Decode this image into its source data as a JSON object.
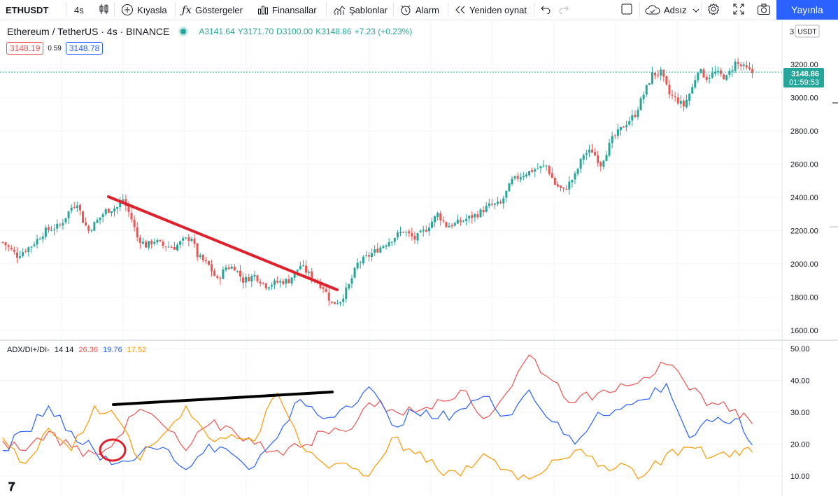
{
  "toolbar": {
    "symbol": "ETHUSDT",
    "interval": "4s",
    "compare": "Kıyasla",
    "indicators": "Göstergeler",
    "financials": "Finansallar",
    "templates": "Şablonlar",
    "alert": "Alarm",
    "replay": "Yeniden oynat",
    "layout_name": "Adsız",
    "publish": "Yayınla"
  },
  "legend": {
    "title": "Ethereum / TetherUS · 4s · BINANCE",
    "open": "A3141.64",
    "high": "Y3171.70",
    "low": "D3100.00",
    "close": "K3148.86",
    "change": "+7.23 (+0.23%)",
    "sell_price": "3148.19",
    "spread": "0.59",
    "buy_price": "3148.78"
  },
  "price_axis": {
    "currency": "USDT",
    "labels": [
      "3200.00",
      "3000.00",
      "2800.00",
      "2600.00",
      "2400.00",
      "2200.00",
      "2000.00",
      "1800.00",
      "1600.00"
    ],
    "last_price": "3148.86",
    "countdown": "01:59:53",
    "top_fragment": "3"
  },
  "indicator": {
    "name": "ADX/DI+/DI-",
    "params": "14 14",
    "adx_value": "26.36",
    "di_plus_value": "19.76",
    "di_minus_value": "17.52",
    "axis_labels": [
      "50.00",
      "40.00",
      "30.00",
      "20.00",
      "10.00"
    ]
  },
  "colors": {
    "up": "#26a69a",
    "down": "#ef5350",
    "adx": "#ef5350",
    "di_plus": "#2962ff",
    "di_minus": "#ff9800",
    "trendline_price": "#e0202b",
    "trendline_indicator": "#000000",
    "accent": "#2962ff"
  },
  "chart_data": [
    {
      "type": "line",
      "chart": "price",
      "y_min": 1600,
      "y_max": 3250,
      "close_path": [
        [
          0,
          2130
        ],
        [
          5,
          2050
        ],
        [
          10,
          2110
        ],
        [
          15,
          2200
        ],
        [
          20,
          2230
        ],
        [
          24,
          2340
        ],
        [
          26,
          2370
        ],
        [
          28,
          2260
        ],
        [
          30,
          2200
        ],
        [
          33,
          2260
        ],
        [
          36,
          2320
        ],
        [
          40,
          2340
        ],
        [
          42,
          2390
        ],
        [
          45,
          2270
        ],
        [
          47,
          2160
        ],
        [
          50,
          2110
        ],
        [
          53,
          2140
        ],
        [
          56,
          2110
        ],
        [
          60,
          2100
        ],
        [
          63,
          2140
        ],
        [
          66,
          2160
        ],
        [
          68,
          2050
        ],
        [
          72,
          1990
        ],
        [
          75,
          1900
        ],
        [
          78,
          1980
        ],
        [
          81,
          1980
        ],
        [
          84,
          1900
        ],
        [
          88,
          1930
        ],
        [
          92,
          1870
        ],
        [
          96,
          1890
        ],
        [
          100,
          1900
        ],
        [
          104,
          1990
        ],
        [
          108,
          1920
        ],
        [
          112,
          1860
        ],
        [
          115,
          1760
        ],
        [
          118,
          1780
        ],
        [
          121,
          1870
        ],
        [
          124,
          2000
        ],
        [
          128,
          2050
        ],
        [
          132,
          2100
        ],
        [
          136,
          2150
        ],
        [
          140,
          2200
        ],
        [
          144,
          2150
        ],
        [
          148,
          2210
        ],
        [
          152,
          2300
        ],
        [
          155,
          2230
        ],
        [
          158,
          2240
        ],
        [
          162,
          2270
        ],
        [
          166,
          2300
        ],
        [
          170,
          2350
        ],
        [
          174,
          2360
        ],
        [
          178,
          2500
        ],
        [
          182,
          2540
        ],
        [
          186,
          2570
        ],
        [
          190,
          2590
        ],
        [
          193,
          2480
        ],
        [
          196,
          2440
        ],
        [
          200,
          2530
        ],
        [
          203,
          2660
        ],
        [
          206,
          2680
        ],
        [
          209,
          2600
        ],
        [
          213,
          2750
        ],
        [
          217,
          2830
        ],
        [
          221,
          2900
        ],
        [
          224,
          3020
        ],
        [
          227,
          3140
        ],
        [
          230,
          3150
        ],
        [
          233,
          3020
        ],
        [
          236,
          2980
        ],
        [
          238,
          2950
        ],
        [
          241,
          3060
        ],
        [
          243,
          3170
        ],
        [
          246,
          3120
        ],
        [
          249,
          3150
        ],
        [
          253,
          3120
        ],
        [
          256,
          3210
        ],
        [
          259,
          3180
        ],
        [
          262,
          3148.86
        ]
      ]
    },
    {
      "type": "line",
      "chart": "ADX/DI+/DI-",
      "y_min": 5,
      "y_max": 52,
      "series": [
        {
          "name": "ADX",
          "values": [
            [
              0,
              21
            ],
            [
              8,
              18
            ],
            [
              16,
              24
            ],
            [
              24,
              19
            ],
            [
              32,
              17
            ],
            [
              40,
              22
            ],
            [
              48,
              31
            ],
            [
              56,
              26
            ],
            [
              64,
              18
            ],
            [
              72,
              26
            ],
            [
              80,
              25
            ],
            [
              88,
              20
            ],
            [
              96,
              18
            ],
            [
              104,
              19
            ],
            [
              112,
              24
            ],
            [
              120,
              24
            ],
            [
              128,
              33
            ],
            [
              136,
              31
            ],
            [
              144,
              30
            ],
            [
              152,
              34
            ],
            [
              160,
              37
            ],
            [
              168,
              28
            ],
            [
              176,
              36
            ],
            [
              184,
              48
            ],
            [
              192,
              40
            ],
            [
              200,
              33
            ],
            [
              208,
              36
            ],
            [
              216,
              39
            ],
            [
              224,
              41
            ],
            [
              232,
              45
            ],
            [
              240,
              37
            ],
            [
              248,
              33
            ],
            [
              256,
              31
            ],
            [
              262,
              26.36
            ]
          ]
        },
        {
          "name": "DI+",
          "values": [
            [
              0,
              18
            ],
            [
              8,
              24
            ],
            [
              16,
              32
            ],
            [
              24,
              24
            ],
            [
              32,
              18
            ],
            [
              40,
              14
            ],
            [
              48,
              17
            ],
            [
              56,
              19
            ],
            [
              64,
              12
            ],
            [
              72,
              20
            ],
            [
              80,
              17
            ],
            [
              88,
              13
            ],
            [
              96,
              22
            ],
            [
              104,
              34
            ],
            [
              112,
              28
            ],
            [
              120,
              32
            ],
            [
              128,
              38
            ],
            [
              136,
              26
            ],
            [
              144,
              30
            ],
            [
              152,
              28
            ],
            [
              160,
              31
            ],
            [
              168,
              35
            ],
            [
              176,
              29
            ],
            [
              184,
              37
            ],
            [
              192,
              27
            ],
            [
              200,
              20
            ],
            [
              208,
              30
            ],
            [
              216,
              31
            ],
            [
              224,
              34
            ],
            [
              232,
              39
            ],
            [
              240,
              22
            ],
            [
              248,
              27
            ],
            [
              256,
              28
            ],
            [
              262,
              19.76
            ]
          ]
        },
        {
          "name": "DI-",
          "values": [
            [
              0,
              22
            ],
            [
              8,
              14
            ],
            [
              16,
              25
            ],
            [
              24,
              18
            ],
            [
              32,
              32
            ],
            [
              40,
              28
            ],
            [
              48,
              15
            ],
            [
              56,
              23
            ],
            [
              64,
              32
            ],
            [
              72,
              22
            ],
            [
              80,
              23
            ],
            [
              88,
              21
            ],
            [
              96,
              36
            ],
            [
              104,
              20
            ],
            [
              112,
              14
            ],
            [
              120,
              14
            ],
            [
              128,
              10
            ],
            [
              136,
              22
            ],
            [
              144,
              17
            ],
            [
              152,
              12
            ],
            [
              160,
              10
            ],
            [
              168,
              17
            ],
            [
              176,
              12
            ],
            [
              184,
              9
            ],
            [
              192,
              15
            ],
            [
              200,
              18
            ],
            [
              208,
              13
            ],
            [
              216,
              14
            ],
            [
              224,
              10
            ],
            [
              232,
              17
            ],
            [
              240,
              19
            ],
            [
              248,
              16
            ],
            [
              256,
              18
            ],
            [
              262,
              17.52
            ]
          ]
        }
      ]
    }
  ]
}
